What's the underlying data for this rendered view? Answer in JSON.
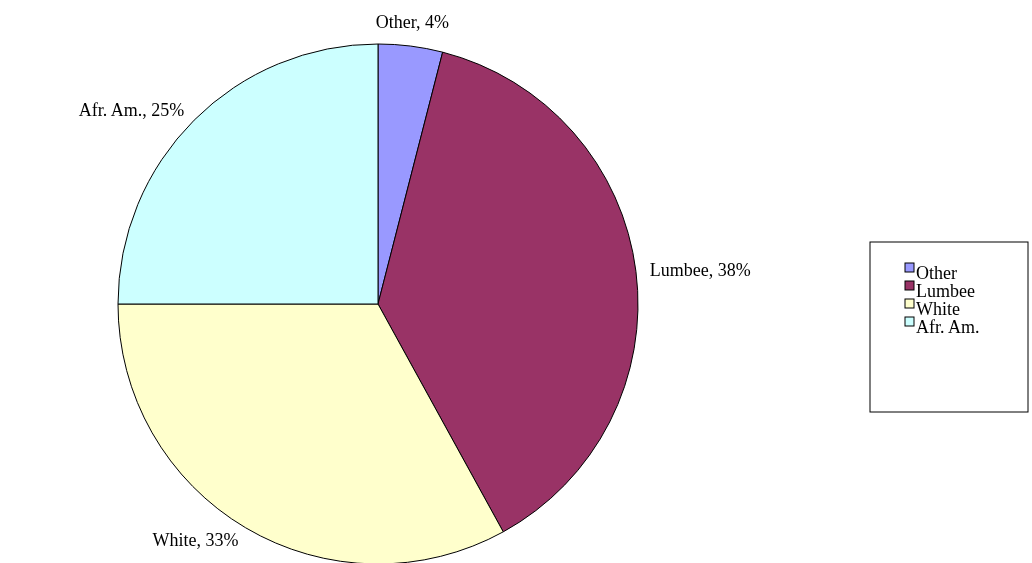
{
  "chart_data": {
    "type": "pie",
    "categories": [
      "Other",
      "Lumbee",
      "White",
      "Afr. Am."
    ],
    "values": [
      4,
      38,
      33,
      25
    ],
    "colors": [
      "#9999ff",
      "#993366",
      "#ffffcc",
      "#ccffff"
    ],
    "value_labels": [
      "Other, 4%",
      "Lumbee, 38%",
      "White, 33%",
      "Afr. Am., 25%"
    ],
    "legend": "right"
  }
}
